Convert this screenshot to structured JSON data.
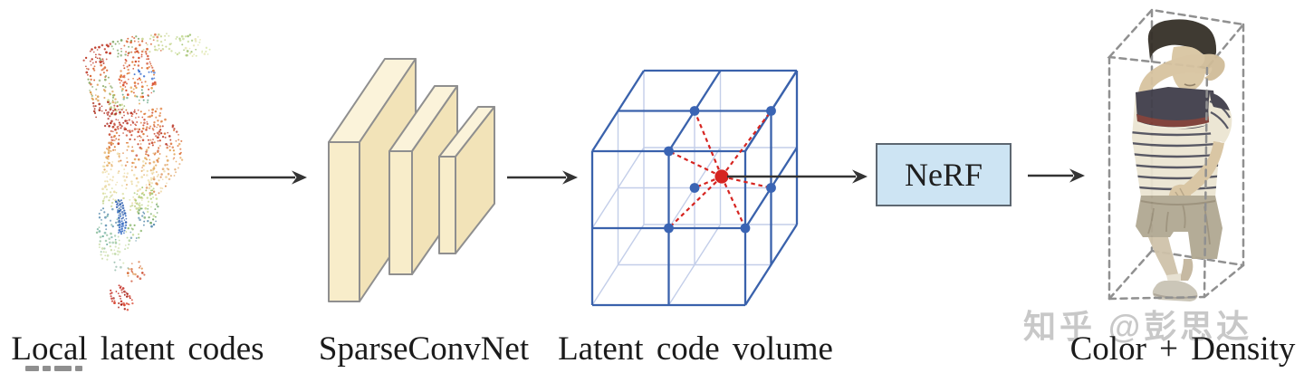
{
  "figure": {
    "stages": [
      {
        "id": "local-latent-codes",
        "label": "Local latent codes"
      },
      {
        "id": "sparseconvnet",
        "label": "SparseConvNet"
      },
      {
        "id": "latent-code-volume",
        "label": "Latent code volume"
      },
      {
        "id": "nerf",
        "label": "NeRF"
      },
      {
        "id": "color-density",
        "label": "Color + Density"
      }
    ],
    "watermark": "知乎 @彭思达",
    "icons": [
      {
        "name": "arrow-right",
        "count": 4
      },
      {
        "name": "point-cloud-human",
        "desc": "colored point cloud of posed person"
      },
      {
        "name": "conv-slabs",
        "desc": "three 3D network layer slabs"
      },
      {
        "name": "grid-cube",
        "desc": "2x2x2 latent code volume with interpolation point"
      },
      {
        "name": "dashed-bounding-box",
        "desc": "3D dashed box around rendered person"
      }
    ],
    "colors": {
      "cube_edge": "#3a62ac",
      "cube_hidden": "#c3cee9",
      "lattice_dot": "#3a64b4",
      "query_point": "#d62420",
      "slab_fill": "#f8edca",
      "slab_fill_top": "#fbf3da",
      "slab_fill_side": "#f2e3b8",
      "slab_stroke": "#8f8f8f",
      "nerf_fill": "#cde4f3",
      "nerf_border": "#5d6771",
      "arrow": "#333333",
      "bbox_dash": "#909090",
      "label_text": "#1b1b1b",
      "watermark_gray": "#c6c6c6"
    }
  }
}
